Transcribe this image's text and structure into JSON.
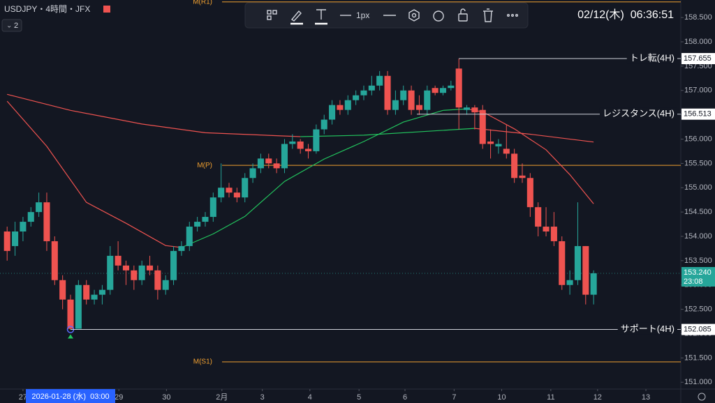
{
  "chart_data": {
    "type": "candlestick",
    "title": "USDJPY・4時間・JFX",
    "pane_count": "2",
    "clock": "02/12(木)  06:36:51",
    "cursor_time": "2026-01-28 (水)  03:00",
    "toolbar": {
      "line_width": "1px"
    },
    "up_color": "#26a69a",
    "down_color": "#ef5350",
    "open": [
      154.1,
      153.8,
      154.1,
      154.3,
      154.5,
      154.7,
      153.9,
      153.1,
      152.7,
      152.1,
      153.0,
      152.7,
      152.8,
      152.9,
      153.6,
      153.4,
      153.3,
      153.1,
      153.4,
      153.3,
      152.9,
      153.1,
      153.7,
      153.8,
      154.2,
      154.3,
      154.4,
      154.8,
      155.0,
      154.9,
      154.8,
      155.2,
      155.4,
      155.6,
      155.5,
      155.4,
      155.9,
      155.95,
      155.8,
      155.75,
      156.2,
      156.4,
      156.7,
      156.6,
      156.8,
      156.9,
      157.0,
      157.1,
      157.3,
      156.6,
      156.8,
      157.0,
      156.7,
      156.6,
      157.05,
      156.95,
      157.05,
      157.45,
      156.6,
      156.65,
      156.6,
      155.95,
      155.85,
      155.8,
      155.7,
      155.25,
      155.2,
      154.6,
      154.2,
      154.2,
      153.9,
      153.0,
      153.1,
      153.8,
      152.8
    ],
    "high": [
      154.2,
      154.3,
      154.4,
      154.6,
      154.9,
      154.9,
      154.0,
      153.2,
      152.8,
      153.1,
      153.1,
      152.9,
      153.0,
      153.8,
      153.9,
      153.5,
      153.4,
      153.5,
      153.6,
      153.4,
      153.2,
      153.8,
      153.9,
      154.3,
      154.4,
      154.5,
      154.9,
      155.5,
      155.1,
      155.0,
      155.3,
      155.5,
      155.7,
      155.7,
      155.6,
      156.0,
      156.1,
      156.0,
      155.9,
      156.3,
      156.5,
      156.8,
      156.8,
      156.9,
      157.0,
      157.1,
      157.3,
      157.4,
      157.4,
      157.0,
      157.1,
      157.1,
      156.9,
      157.1,
      157.1,
      157.1,
      157.2,
      157.655,
      156.7,
      156.7,
      156.7,
      156.2,
      156.0,
      156.3,
      155.8,
      155.5,
      155.3,
      154.7,
      154.6,
      154.5,
      154.0,
      153.3,
      154.7,
      153.8,
      153.3
    ],
    "low": [
      153.5,
      153.6,
      153.9,
      154.2,
      154.4,
      153.7,
      153.0,
      152.5,
      152.085,
      152.1,
      152.6,
      152.6,
      152.6,
      152.8,
      153.3,
      153.0,
      152.9,
      153.0,
      153.2,
      152.7,
      152.8,
      153.0,
      153.6,
      153.7,
      154.1,
      154.2,
      154.3,
      154.7,
      154.8,
      154.7,
      154.7,
      155.1,
      155.3,
      155.4,
      155.3,
      155.3,
      155.8,
      155.7,
      155.6,
      155.7,
      156.1,
      156.3,
      156.5,
      156.5,
      156.7,
      156.8,
      156.9,
      157.0,
      156.5,
      156.5,
      156.7,
      156.5,
      156.5,
      156.5,
      156.9,
      156.9,
      157.0,
      156.2,
      156.5,
      156.2,
      155.8,
      155.6,
      155.7,
      155.6,
      155.1,
      155.1,
      154.4,
      154.0,
      154.0,
      153.8,
      152.9,
      152.8,
      153.0,
      152.6,
      152.6
    ],
    "close": [
      153.7,
      154.1,
      154.3,
      154.5,
      154.7,
      153.9,
      153.1,
      152.7,
      152.1,
      153.0,
      152.7,
      152.8,
      152.9,
      153.6,
      153.4,
      153.3,
      153.1,
      153.4,
      153.3,
      152.9,
      153.1,
      153.7,
      153.8,
      154.2,
      154.3,
      154.4,
      154.8,
      155.0,
      154.9,
      154.8,
      155.2,
      155.4,
      155.6,
      155.5,
      155.4,
      155.9,
      155.95,
      155.8,
      155.75,
      156.2,
      156.4,
      156.7,
      156.6,
      156.8,
      156.9,
      157.0,
      157.1,
      157.3,
      156.6,
      156.8,
      157.0,
      156.6,
      156.6,
      157.0,
      156.95,
      157.05,
      157.1,
      156.65,
      156.65,
      156.55,
      155.9,
      155.9,
      155.9,
      155.7,
      155.2,
      155.2,
      154.6,
      154.2,
      154.1,
      153.9,
      153.0,
      153.1,
      153.8,
      152.8,
      153.24
    ],
    "lines": [
      {
        "color": "#ef5350",
        "x": [
          0,
          5,
          10,
          15,
          20,
          22
        ],
        "values": [
          156.78,
          155.85,
          154.7,
          154.27,
          153.81,
          153.77
        ]
      },
      {
        "color": "#22c55e",
        "x": [
          22,
          26,
          30,
          35,
          40,
          45,
          50,
          55,
          58
        ],
        "values": [
          153.77,
          154.05,
          154.41,
          155.13,
          155.59,
          155.95,
          156.35,
          156.59,
          156.62
        ]
      },
      {
        "color": "#ef5350",
        "x": [
          58,
          60,
          64,
          68,
          71,
          74
        ],
        "values": [
          156.62,
          156.56,
          156.21,
          155.78,
          155.27,
          154.67
        ]
      },
      {
        "color": "#ef5350",
        "x": [
          0,
          8,
          17,
          25,
          37
        ],
        "values": [
          156.92,
          156.59,
          156.31,
          156.13,
          156.05
        ]
      },
      {
        "color": "#22c55e",
        "x": [
          37,
          45,
          53,
          59
        ],
        "values": [
          156.05,
          156.08,
          156.16,
          156.22
        ]
      },
      {
        "color": "#ef5350",
        "x": [
          59,
          66,
          74
        ],
        "values": [
          156.22,
          156.1,
          155.94
        ]
      }
    ],
    "pivots": [
      {
        "label": "M(R1)",
        "value": 158.82
      },
      {
        "label": "M(P)",
        "value": 155.46
      },
      {
        "label": "M(S1)",
        "value": 151.42
      }
    ],
    "pivot_color": "#f0a030",
    "annotations": [
      {
        "label": "トレ転(4H)",
        "value": 157.655,
        "value_label": "157.655",
        "from": 57
      },
      {
        "label": "レジスタンス(4H)",
        "value": 156.513,
        "value_label": "156.513",
        "from": 51.7
      },
      {
        "label": "サポート(4H)",
        "value": 152.085,
        "value_label": "152.085",
        "from": 8
      }
    ],
    "last_price": {
      "value": 153.24,
      "label": "153.240",
      "countdown": "23:08"
    },
    "xlim": [
      -0.9,
      85
    ],
    "ylim": [
      150.86,
      158.86
    ],
    "yticks": [
      {
        "value": 158.5,
        "label": "158.500"
      },
      {
        "value": 158.0,
        "label": "158.000"
      },
      {
        "value": 157.5,
        "label": "157.500"
      },
      {
        "value": 157.0,
        "label": "157.000"
      },
      {
        "value": 156.5,
        "label": "156.500"
      },
      {
        "value": 156.0,
        "label": "156.000"
      },
      {
        "value": 155.5,
        "label": "155.500"
      },
      {
        "value": 155.0,
        "label": "155.000"
      },
      {
        "value": 154.5,
        "label": "154.500"
      },
      {
        "value": 154.0,
        "label": "154.000"
      },
      {
        "value": 153.5,
        "label": "153.500"
      },
      {
        "value": 153.0,
        "label": "153.000"
      },
      {
        "value": 152.5,
        "label": "152.500"
      },
      {
        "value": 152.0,
        "label": "152.000"
      },
      {
        "value": 151.5,
        "label": "151.500"
      },
      {
        "value": 151.0,
        "label": "151.000"
      }
    ],
    "xticks": [
      {
        "value": 2,
        "label": "27"
      },
      {
        "value": 14.1,
        "label": "29"
      },
      {
        "value": 20.1,
        "label": "30"
      },
      {
        "value": 27.1,
        "label": "2月"
      },
      {
        "value": 32.2,
        "label": "3"
      },
      {
        "value": 38.2,
        "label": "4"
      },
      {
        "value": 44.4,
        "label": "5"
      },
      {
        "value": 50.2,
        "label": "6"
      },
      {
        "value": 56.4,
        "label": "7"
      },
      {
        "value": 62.4,
        "label": "10"
      },
      {
        "value": 68.6,
        "label": "11"
      },
      {
        "value": 74.5,
        "label": "12"
      },
      {
        "value": 80.6,
        "label": "13"
      }
    ],
    "grid": false
  }
}
